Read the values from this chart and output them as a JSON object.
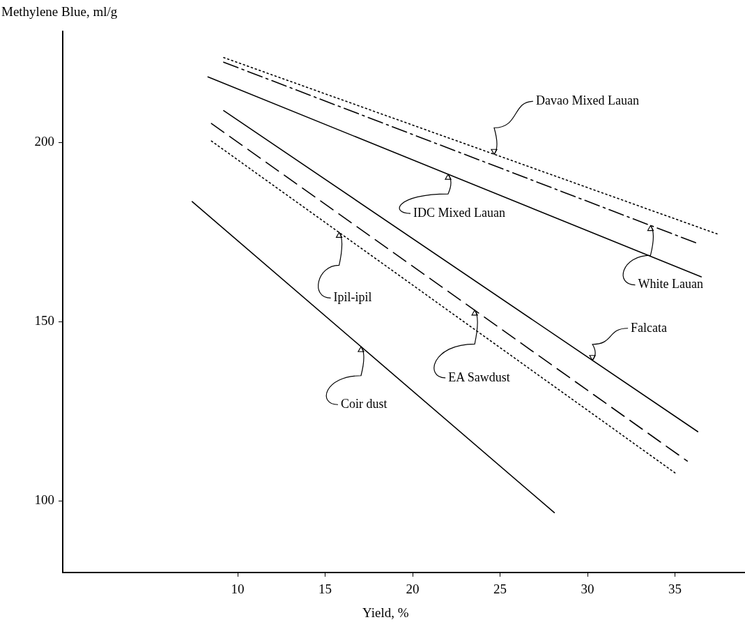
{
  "chart_data": {
    "type": "line",
    "xlabel": "Yield, %",
    "ylabel": "Methylene Blue, ml/g",
    "xlim": [
      0,
      39
    ],
    "ylim": [
      80,
      231
    ],
    "xticks": [
      10,
      15,
      20,
      25,
      30,
      35
    ],
    "yticks": [
      100,
      150,
      200
    ],
    "grid": false,
    "legend": false,
    "marker": "none",
    "series": [
      {
        "color": "#000000",
        "line_style": "dotted",
        "x": [
          9.2,
          37.4
        ],
        "values": [
          223.7,
          174.5
        ]
      },
      {
        "color": "#000000",
        "line_style": "dashdot",
        "x": [
          9.2,
          36.3
        ],
        "values": [
          222.4,
          171.8
        ]
      },
      {
        "color": "#000000",
        "line_style": "solid",
        "x": [
          8.3,
          36.5
        ],
        "values": [
          218.3,
          162.5
        ]
      },
      {
        "color": "#000000",
        "line_style": "solid",
        "x": [
          9.2,
          36.3
        ],
        "values": [
          208.9,
          119.3
        ]
      },
      {
        "color": "#000000",
        "line_style": "dashed",
        "x": [
          8.5,
          35.7
        ],
        "values": [
          205.3,
          111.1
        ]
      },
      {
        "color": "#000000",
        "line_style": "dotted",
        "x": [
          8.5,
          35.0
        ],
        "values": [
          200.4,
          107.8
        ]
      },
      {
        "color": "#000000",
        "line_style": "solid",
        "x": [
          7.4,
          28.1
        ],
        "values": [
          183.5,
          96.7
        ]
      }
    ],
    "annotations": [
      {
        "text": "Davao Mixed Lauan",
        "x": 24.66,
        "y": 196.7
      },
      {
        "text": "IDC Mixed Lauan",
        "x": 22.03,
        "y": 191.1
      },
      {
        "text": "White Lauan",
        "x": 33.6,
        "y": 176.8
      },
      {
        "text": "Ipil-ipil",
        "x": 15.8,
        "y": 174.9
      },
      {
        "text": "Falcata",
        "x": 30.28,
        "y": 139.2
      },
      {
        "text": "EA Sawdust",
        "x": 23.55,
        "y": 153.2
      },
      {
        "text": "Coir dust",
        "x": 17.05,
        "y": 143.0
      }
    ]
  }
}
